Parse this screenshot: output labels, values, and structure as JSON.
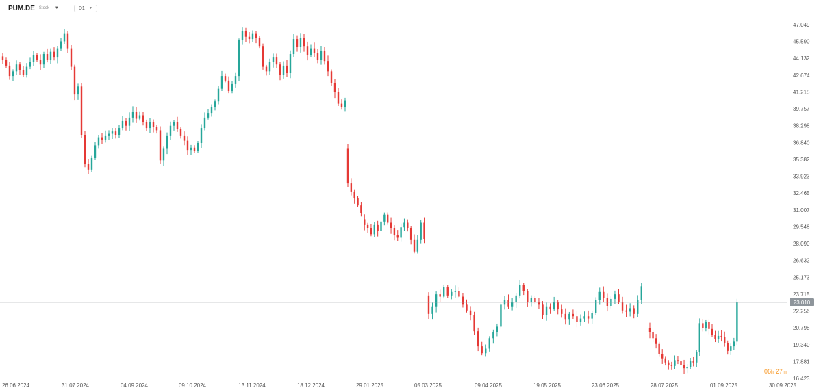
{
  "header": {
    "symbol": "PUM.DE",
    "symbol_sub": "Stock",
    "timeframe": "D1"
  },
  "price_tag": "23.010",
  "countdown": {
    "hours": "06",
    "hours_unit": "h",
    "minutes": "27",
    "minutes_unit": "m"
  },
  "colors": {
    "up": "#26a69a",
    "down": "#e53935",
    "price_line": "#9aa0a6",
    "price_tag_bg": "#8e959b",
    "countdown": "#f7941d"
  },
  "chart_data": {
    "type": "candlestick",
    "y_ticks": [
      "47.049",
      "45.590",
      "44.132",
      "42.674",
      "41.215",
      "39.757",
      "38.298",
      "36.840",
      "35.382",
      "33.923",
      "32.465",
      "31.007",
      "29.548",
      "28.090",
      "26.632",
      "25.173",
      "23.715",
      "22.256",
      "20.798",
      "19.340",
      "17.881",
      "16.423"
    ],
    "x_ticks": [
      "26.06.2024",
      "31.07.2024",
      "04.09.2024",
      "09.10.2024",
      "13.11.2024",
      "18.12.2024",
      "29.01.2025",
      "05.03.2025",
      "09.04.2025",
      "19.05.2025",
      "23.06.2025",
      "28.07.2025",
      "01.09.2025",
      "30.09.2025"
    ],
    "ylim": [
      16.423,
      47.049
    ],
    "current_price": 23.01,
    "candles": [
      [
        44.3,
        44.0
      ],
      [
        44.0,
        43.5
      ],
      [
        43.5,
        42.6
      ],
      [
        42.6,
        43.0
      ],
      [
        43.0,
        43.6
      ],
      [
        43.6,
        43.1
      ],
      [
        43.1,
        42.7
      ],
      [
        42.7,
        43.4
      ],
      [
        43.4,
        43.8
      ],
      [
        43.8,
        44.4
      ],
      [
        44.4,
        44.0
      ],
      [
        44.0,
        43.6
      ],
      [
        43.6,
        44.5
      ],
      [
        44.5,
        44.0
      ],
      [
        44.0,
        44.7
      ],
      [
        44.7,
        44.2
      ],
      [
        44.2,
        45.0
      ],
      [
        45.0,
        45.6
      ],
      [
        45.6,
        46.3
      ],
      [
        46.3,
        45.0
      ],
      [
        45.0,
        43.4
      ],
      [
        43.4,
        41.0
      ],
      [
        41.0,
        41.7
      ],
      [
        41.7,
        37.5
      ],
      [
        37.5,
        35.0
      ],
      [
        35.0,
        34.5
      ],
      [
        34.5,
        35.5
      ],
      [
        35.5,
        36.6
      ],
      [
        36.6,
        37.3
      ],
      [
        37.3,
        37.1
      ],
      [
        37.1,
        37.4
      ],
      [
        37.4,
        37.6
      ],
      [
        37.6,
        37.8
      ],
      [
        37.8,
        37.5
      ],
      [
        37.5,
        38.1
      ],
      [
        38.1,
        38.7
      ],
      [
        38.7,
        38.3
      ],
      [
        38.3,
        39.0
      ],
      [
        39.0,
        39.5
      ],
      [
        39.5,
        38.9
      ],
      [
        38.9,
        39.2
      ],
      [
        39.2,
        38.6
      ],
      [
        38.6,
        38.1
      ],
      [
        38.1,
        38.6
      ],
      [
        38.6,
        38.2
      ],
      [
        38.2,
        37.9
      ],
      [
        37.9,
        35.3
      ],
      [
        35.3,
        36.3
      ],
      [
        36.3,
        37.4
      ],
      [
        37.4,
        38.3
      ],
      [
        38.3,
        38.6
      ],
      [
        38.6,
        38.0
      ],
      [
        38.0,
        37.4
      ],
      [
        37.4,
        37.0
      ],
      [
        37.0,
        36.2
      ],
      [
        36.2,
        36.4
      ],
      [
        36.4,
        36.1
      ],
      [
        36.1,
        36.8
      ],
      [
        36.8,
        38.1
      ],
      [
        38.1,
        39.0
      ],
      [
        39.0,
        39.4
      ],
      [
        39.4,
        39.9
      ],
      [
        39.9,
        40.4
      ],
      [
        40.4,
        41.5
      ],
      [
        41.5,
        42.6
      ],
      [
        42.6,
        42.2
      ],
      [
        42.2,
        41.3
      ],
      [
        41.3,
        41.9
      ],
      [
        41.9,
        42.6
      ],
      [
        42.6,
        45.7
      ],
      [
        45.7,
        46.5
      ],
      [
        46.5,
        46.0
      ],
      [
        46.0,
        45.8
      ],
      [
        45.8,
        46.3
      ],
      [
        46.3,
        45.9
      ],
      [
        45.9,
        45.2
      ],
      [
        45.2,
        43.4
      ],
      [
        43.4,
        43.0
      ],
      [
        43.0,
        43.8
      ],
      [
        43.8,
        44.2
      ],
      [
        44.2,
        43.6
      ],
      [
        43.6,
        42.7
      ],
      [
        42.7,
        43.5
      ],
      [
        43.5,
        42.9
      ],
      [
        42.9,
        44.5
      ],
      [
        44.5,
        45.8
      ],
      [
        45.8,
        45.1
      ],
      [
        45.1,
        45.9
      ],
      [
        45.9,
        45.2
      ],
      [
        45.2,
        44.4
      ],
      [
        44.4,
        45.0
      ],
      [
        45.0,
        44.6
      ],
      [
        44.6,
        44.0
      ],
      [
        44.0,
        44.8
      ],
      [
        44.8,
        43.9
      ],
      [
        43.9,
        43.0
      ],
      [
        43.0,
        42.0
      ],
      [
        42.0,
        41.2
      ],
      [
        41.2,
        40.2
      ],
      [
        40.2,
        39.9
      ],
      [
        39.9,
        40.5
      ]
    ],
    "candles_2": [
      [
        36.3,
        33.3
      ],
      [
        33.3,
        32.6
      ],
      [
        32.6,
        32.0
      ],
      [
        32.0,
        31.4
      ],
      [
        31.4,
        30.7
      ],
      [
        30.2,
        29.7
      ],
      [
        29.7,
        29.4
      ],
      [
        29.4,
        28.9
      ],
      [
        28.9,
        29.7
      ],
      [
        29.7,
        29.2
      ],
      [
        29.2,
        30.0
      ],
      [
        30.0,
        30.6
      ],
      [
        30.6,
        29.9
      ],
      [
        29.9,
        29.4
      ],
      [
        29.4,
        28.8
      ],
      [
        28.8,
        28.6
      ],
      [
        28.6,
        29.5
      ],
      [
        29.5,
        29.9
      ],
      [
        29.9,
        29.4
      ],
      [
        29.4,
        28.4
      ],
      [
        28.4,
        27.4
      ],
      [
        27.4,
        28.4
      ],
      [
        28.4,
        29.9
      ],
      [
        29.9,
        28.5
      ]
    ],
    "candles_3": [
      [
        23.6,
        22.0
      ],
      [
        22.0,
        22.6
      ],
      [
        22.6,
        23.7
      ],
      [
        23.7,
        23.5
      ],
      [
        23.5,
        24.3
      ],
      [
        24.3,
        23.6
      ],
      [
        23.6,
        23.9
      ],
      [
        23.9,
        24.0
      ],
      [
        24.0,
        23.5
      ],
      [
        23.5,
        22.8
      ],
      [
        22.8,
        22.3
      ],
      [
        22.3,
        21.9
      ],
      [
        21.9,
        20.5
      ],
      [
        20.5,
        19.2
      ],
      [
        19.2,
        18.6
      ],
      [
        18.6,
        19.0
      ],
      [
        19.0,
        19.9
      ],
      [
        19.9,
        20.4
      ],
      [
        20.4,
        20.9
      ],
      [
        20.9,
        22.8
      ],
      [
        22.8,
        23.2
      ],
      [
        23.2,
        22.6
      ],
      [
        22.6,
        23.0
      ],
      [
        23.0,
        23.6
      ],
      [
        23.6,
        24.5
      ],
      [
        24.5,
        24.0
      ],
      [
        24.0,
        23.0
      ],
      [
        23.0,
        23.4
      ],
      [
        23.4,
        23.0
      ],
      [
        23.0,
        22.8
      ],
      [
        22.8,
        21.9
      ],
      [
        21.9,
        22.6
      ],
      [
        22.6,
        22.4
      ],
      [
        22.4,
        23.0
      ],
      [
        23.0,
        22.4
      ],
      [
        22.4,
        22.0
      ],
      [
        22.0,
        21.5
      ],
      [
        21.5,
        22.0
      ],
      [
        22.0,
        21.8
      ],
      [
        21.8,
        21.3
      ],
      [
        21.3,
        21.6
      ],
      [
        21.6,
        21.8
      ],
      [
        21.8,
        21.6
      ],
      [
        21.6,
        22.1
      ],
      [
        22.1,
        23.2
      ],
      [
        23.2,
        23.9
      ],
      [
        23.9,
        23.4
      ],
      [
        23.4,
        22.7
      ],
      [
        22.7,
        23.3
      ],
      [
        23.3,
        23.7
      ],
      [
        23.7,
        23.0
      ],
      [
        23.0,
        22.3
      ],
      [
        22.3,
        22.2
      ],
      [
        22.2,
        22.5
      ],
      [
        22.5,
        22.0
      ],
      [
        22.0,
        23.2
      ],
      [
        23.2,
        24.4
      ]
    ],
    "candles_4": [
      [
        20.8,
        20.4
      ],
      [
        20.4,
        19.9
      ],
      [
        19.9,
        19.4
      ],
      [
        19.4,
        18.5
      ],
      [
        18.5,
        18.1
      ],
      [
        18.1,
        17.8
      ],
      [
        17.8,
        17.6
      ],
      [
        17.6,
        17.5
      ],
      [
        17.5,
        18.0
      ],
      [
        18.0,
        17.9
      ],
      [
        17.9,
        17.6
      ],
      [
        17.6,
        17.3
      ],
      [
        17.3,
        17.4
      ],
      [
        17.4,
        17.9
      ],
      [
        17.9,
        17.8
      ],
      [
        17.8,
        18.7
      ],
      [
        18.7,
        21.2
      ],
      [
        21.2,
        20.8
      ],
      [
        20.8,
        21.3
      ],
      [
        21.3,
        20.7
      ],
      [
        20.7,
        20.2
      ],
      [
        20.2,
        19.8
      ],
      [
        19.8,
        20.1
      ],
      [
        20.1,
        20.0
      ],
      [
        20.0,
        19.5
      ],
      [
        19.5,
        18.8
      ],
      [
        18.8,
        19.2
      ],
      [
        19.2,
        19.6
      ],
      [
        19.6,
        23.0
      ]
    ]
  }
}
